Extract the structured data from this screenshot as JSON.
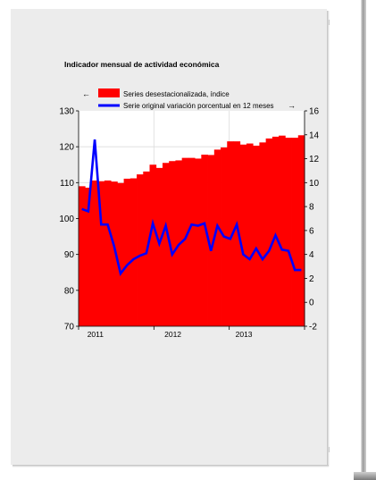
{
  "chart_data": {
    "type": "bar+line",
    "title": "Indicador mensual de actividad económica",
    "legend": [
      {
        "name": "Series desestacionalizada, índice",
        "color": "#ff0000",
        "axis": "left",
        "marker": "←"
      },
      {
        "name": "Serie original variación porcentual en 12 meses",
        "color": "#0000ff",
        "axis": "right",
        "marker": "→"
      }
    ],
    "left_axis": {
      "min": 70,
      "max": 130,
      "ticks": [
        "70",
        "80",
        "90",
        "100",
        "110",
        "120",
        "130"
      ]
    },
    "right_axis": {
      "min": -2,
      "max": 16,
      "ticks": [
        "-2",
        "0",
        "2",
        "4",
        "6",
        "8",
        "10",
        "12",
        "14",
        "16"
      ]
    },
    "x_labels": [
      {
        "label": "2011",
        "month_index": 1
      },
      {
        "label": "2012",
        "month_index": 13
      },
      {
        "label": "2013",
        "month_index": 24
      }
    ],
    "months": 35,
    "series": [
      {
        "name": "Series desestacionalizada, índice",
        "values": [
          109,
          108.6,
          110.6,
          110.4,
          110.6,
          110.3,
          109.9,
          111.1,
          111.2,
          112.3,
          113.1,
          115,
          114.1,
          115.5,
          116,
          116.2,
          116.9,
          116.9,
          116.7,
          117.8,
          117.7,
          119.2,
          119.8,
          121.5,
          121.5,
          120.6,
          120.9,
          120.3,
          121.2,
          122.3,
          122.8,
          123.1,
          122.5,
          122.5,
          123.2
        ]
      },
      {
        "name": "Serie original variación porcentual en 12 meses",
        "values": [
          7.8,
          7.6,
          13.6,
          6.5,
          6.5,
          4.7,
          2.4,
          3.1,
          3.6,
          3.9,
          4.1,
          6.6,
          4.9,
          6.4,
          4,
          4.8,
          5.3,
          6.5,
          6.4,
          6.6,
          4.3,
          6.4,
          5.5,
          5.3,
          6.5,
          4,
          3.6,
          4.5,
          3.6,
          4.3,
          5.6,
          4.4,
          4.3,
          2.7,
          2.7
        ]
      }
    ]
  }
}
